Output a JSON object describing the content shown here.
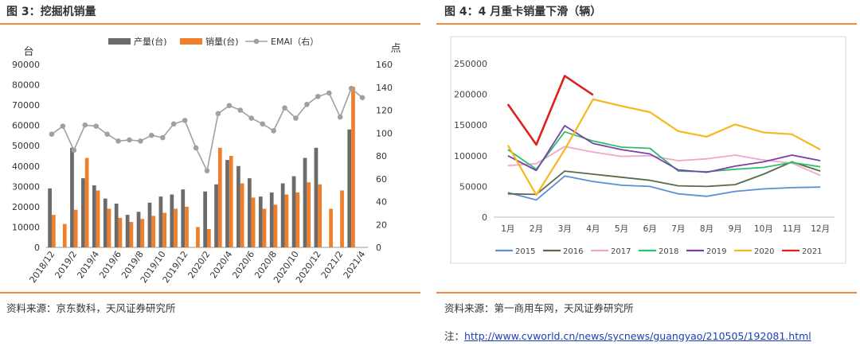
{
  "left": {
    "title": "图 3：挖掘机销量",
    "source": "资料来源：京东数科，天风证券研究所",
    "chart_data": {
      "type": "bar",
      "title": "挖掘机销量",
      "ylabel": "台",
      "y2label": "点",
      "ylim": [
        0,
        90000
      ],
      "yticks": [
        0,
        10000,
        20000,
        30000,
        40000,
        50000,
        60000,
        70000,
        80000,
        90000
      ],
      "y2lim": [
        0,
        160
      ],
      "y2ticks": [
        0,
        20,
        40,
        60,
        80,
        100,
        120,
        140,
        160
      ],
      "x_tick_labels": [
        "2018/12",
        "2019/2",
        "2019/4",
        "2019/6",
        "2019/8",
        "2019/10",
        "2019/12",
        "2020/2",
        "2020/4",
        "2020/6",
        "2020/8",
        "2020/10",
        "2020/12",
        "2021/2",
        "2021/4"
      ],
      "categories": [
        "2018/12",
        "2019/1",
        "2019/2",
        "2019/3",
        "2019/4",
        "2019/5",
        "2019/6",
        "2019/7",
        "2019/8",
        "2019/9",
        "2019/10",
        "2019/11",
        "2019/12",
        "2020/1",
        "2020/2",
        "2020/3",
        "2020/4",
        "2020/5",
        "2020/6",
        "2020/7",
        "2020/8",
        "2020/9",
        "2020/10",
        "2020/11",
        "2020/12",
        "2021/1",
        "2021/2",
        "2021/3",
        "2021/4"
      ],
      "series": [
        {
          "name": "产量(台)",
          "kind": "bar",
          "axis": "left",
          "color": "#6b6b6b",
          "values": [
            29000,
            null,
            49000,
            34000,
            30500,
            24000,
            21500,
            16000,
            17500,
            22000,
            25000,
            26000,
            28500,
            null,
            27500,
            31000,
            43000,
            40000,
            34000,
            25000,
            27000,
            31500,
            35000,
            44000,
            49000,
            null,
            null,
            58000,
            null
          ]
        },
        {
          "name": "销量(台)",
          "kind": "bar",
          "axis": "left",
          "color": "#f07f2c",
          "values": [
            16000,
            11500,
            18500,
            44000,
            28000,
            19000,
            14500,
            12500,
            14000,
            15500,
            17000,
            19000,
            20000,
            10000,
            9000,
            49000,
            45000,
            31500,
            24500,
            19000,
            21000,
            26000,
            27000,
            32000,
            31000,
            19000,
            28000,
            79000,
            null
          ]
        },
        {
          "name": "EMAI（右）",
          "kind": "line",
          "axis": "right",
          "color": "#a0a0a0",
          "values": [
            99,
            106,
            85,
            107,
            106,
            99,
            93,
            94,
            93,
            98,
            96,
            108,
            111,
            87,
            67,
            117,
            124,
            120,
            113,
            108,
            102,
            122,
            113,
            125,
            132,
            135,
            114,
            139,
            131
          ]
        }
      ]
    }
  },
  "right": {
    "title": "图 4：4 月重卡销量下滑（辆）",
    "source": "资料来源：第一商用车网，天风证券研究所",
    "note_prefix": "注：",
    "note_url": "http://www.cvworld.cn/news/sycnews/guangyao/210505/192081.html",
    "chart_data": {
      "type": "line",
      "title": "4 月重卡销量下滑（辆）",
      "categories": [
        "1月",
        "2月",
        "3月",
        "4月",
        "5月",
        "6月",
        "7月",
        "8月",
        "9月",
        "10月",
        "11月",
        "12月"
      ],
      "ylim": [
        0,
        250000
      ],
      "yticks": [
        0,
        50000,
        100000,
        150000,
        200000,
        250000
      ],
      "series": [
        {
          "name": "2015",
          "color": "#5b8fd6",
          "values": [
            40000,
            28000,
            67000,
            58000,
            52000,
            50000,
            38000,
            34000,
            42000,
            46000,
            48000,
            49000
          ]
        },
        {
          "name": "2016",
          "color": "#5a6b48",
          "values": [
            38000,
            37000,
            75000,
            70000,
            65000,
            60000,
            51000,
            50000,
            53000,
            70000,
            90000,
            75000
          ]
        },
        {
          "name": "2017",
          "color": "#f0a8c8",
          "values": [
            84000,
            87000,
            115000,
            106000,
            99000,
            100000,
            92000,
            95000,
            101000,
            93000,
            88000,
            68000
          ]
        },
        {
          "name": "2018",
          "color": "#2ebf6e",
          "values": [
            110000,
            78000,
            139000,
            124000,
            114000,
            112000,
            75000,
            74000,
            78000,
            81000,
            89000,
            82000
          ]
        },
        {
          "name": "2019",
          "color": "#7a3fa8",
          "values": [
            100000,
            76000,
            149000,
            120000,
            110000,
            103000,
            77000,
            73000,
            83000,
            90000,
            101000,
            92000
          ]
        },
        {
          "name": "2020",
          "color": "#f5b81e",
          "values": [
            117000,
            36000,
            110000,
            192000,
            181000,
            171000,
            140000,
            131000,
            151000,
            138000,
            135000,
            110000
          ]
        },
        {
          "name": "2021",
          "color": "#e02020",
          "values": [
            184000,
            118000,
            230000,
            199000,
            null,
            null,
            null,
            null,
            null,
            null,
            null,
            null
          ]
        }
      ]
    }
  }
}
